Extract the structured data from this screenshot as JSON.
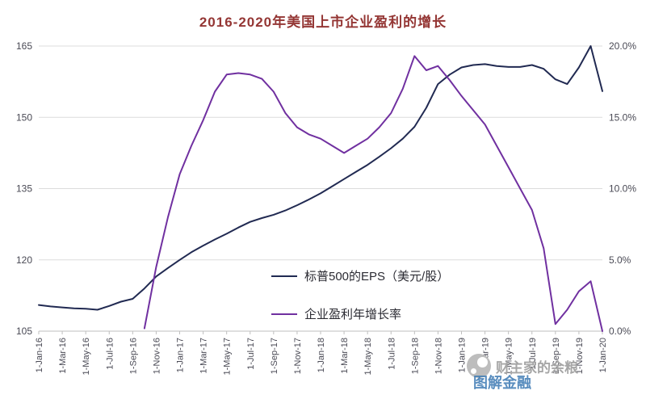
{
  "colors": {
    "title": "#943634",
    "axis_labels": "#4a4a55",
    "grid": "#dcdcdc",
    "axis_line": "#bfbfbf",
    "legend_text": "#2b2b33",
    "eps_line": "#212a52",
    "growth_line": "#7030a0",
    "watermark_gray": "#a6a6a6",
    "watermark_blue": "#3b79b3",
    "background": "#ffffff"
  },
  "watermark": {
    "logo": "xueqiu-snowball-logo",
    "text_primary": "财主家的余粮",
    "text_secondary": "图解金融"
  },
  "chart_data": {
    "type": "line",
    "title": "2016-2020年美国上市企业盈利的增长",
    "x_frequency": "monthly, Jan-2016 through Jan-2020 (49 points), tick labels every 2 months, rotated vertical",
    "x_tick_labels": [
      "1-Jan-16",
      "1-Mar-16",
      "1-May-16",
      "1-Jul-16",
      "1-Sep-16",
      "1-Nov-16",
      "1-Jan-17",
      "1-Mar-17",
      "1-May-17",
      "1-Jul-17",
      "1-Sep-17",
      "1-Nov-17",
      "1-Jan-18",
      "1-Mar-18",
      "1-May-18",
      "1-Jul-18",
      "1-Sep-18",
      "1-Nov-18",
      "1-Jan-19",
      "1-Mar-19",
      "1-May-19",
      "1-Jul-19",
      "1-Sep-19",
      "1-Nov-19",
      "1-Jan-20"
    ],
    "y_left": {
      "tick_labels": [
        "105",
        "120",
        "135",
        "150",
        "165"
      ],
      "tick_values": [
        105,
        120,
        135,
        150,
        165
      ],
      "range": [
        105,
        165
      ]
    },
    "y_right": {
      "tick_labels": [
        "0.0%",
        "5.0%",
        "10.0%",
        "15.0%",
        "20.0%"
      ],
      "tick_values": [
        0,
        5,
        10,
        15,
        20
      ],
      "range": [
        0,
        20
      ]
    },
    "grid": true,
    "legend_position": "inside-center-right",
    "series": [
      {
        "name": "标普500的EPS（美元/股）",
        "axis": "left",
        "color": "#212a52",
        "values": [
          110.5,
          110.2,
          110,
          109.8,
          109.7,
          109.5,
          110.3,
          111.2,
          111.8,
          114,
          116.5,
          118.3,
          120,
          121.6,
          123,
          124.3,
          125.5,
          126.8,
          128,
          128.8,
          129.5,
          130.4,
          131.5,
          132.7,
          134,
          135.5,
          137,
          138.5,
          140,
          141.7,
          143.5,
          145.5,
          148,
          152,
          157,
          159,
          160.5,
          161,
          161.2,
          160.8,
          160.6,
          160.6,
          161,
          160.2,
          158,
          157,
          160.5,
          165,
          155.5
        ]
      },
      {
        "name": "企业盈利年增长率",
        "axis": "right",
        "color": "#7030a0",
        "values": [
          null,
          null,
          null,
          null,
          null,
          null,
          null,
          null,
          null,
          0.2,
          4.5,
          8,
          11,
          13,
          14.8,
          16.8,
          18,
          18.1,
          18,
          17.7,
          16.8,
          15.3,
          14.3,
          13.8,
          13.5,
          13,
          12.5,
          13,
          13.5,
          14.3,
          15.3,
          17,
          19.3,
          18.3,
          18.6,
          17.6,
          16.5,
          15.5,
          14.5,
          13,
          11.5,
          10,
          8.5,
          5.8,
          0.5,
          1.5,
          2.8,
          3.5,
          0
        ]
      }
    ]
  }
}
